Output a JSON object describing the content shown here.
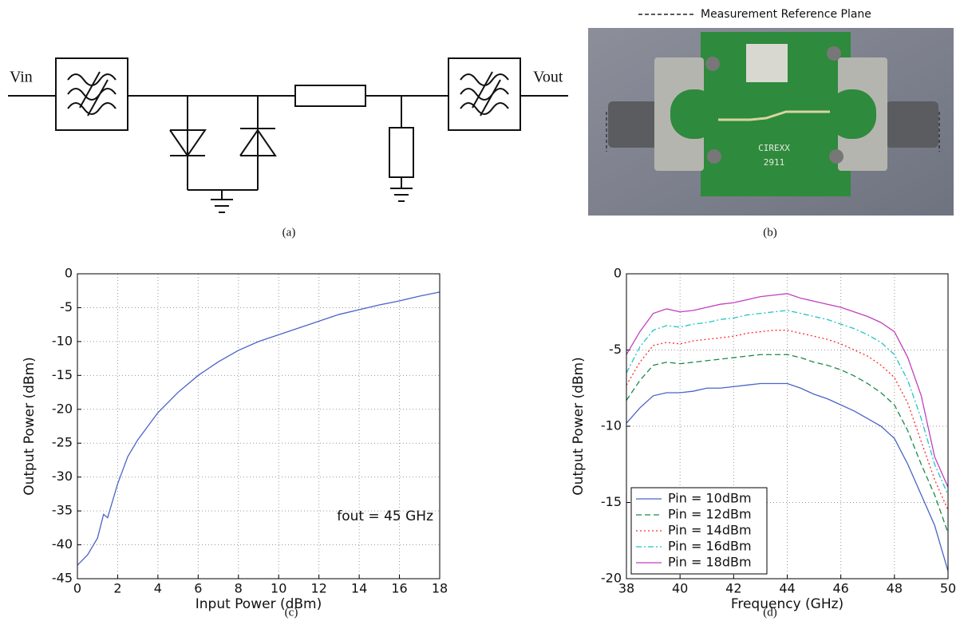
{
  "figure": {
    "schematic": {
      "input_label": "Vin",
      "output_label": "Vout",
      "caption": "(a)"
    },
    "photo": {
      "legend": "Measurement Reference Plane",
      "board_labels": [
        "CIREXX",
        "2911"
      ],
      "caption": "(b)"
    }
  },
  "chart_data": [
    {
      "type": "line",
      "caption": "(c)",
      "xlabel": "Input Power (dBm)",
      "ylabel": "Output Power (dBm)",
      "annotation": "fout = 45 GHz",
      "x": [
        0,
        0.5,
        1,
        1.3,
        1.5,
        2,
        2.5,
        3,
        4,
        5,
        6,
        7,
        8,
        9,
        10,
        11,
        12,
        13,
        14,
        15,
        16,
        17,
        18
      ],
      "values": [
        -43,
        -41.5,
        -39,
        -35.5,
        -36,
        -31,
        -27,
        -24.5,
        -20.5,
        -17.5,
        -15,
        -13,
        -11.3,
        -10,
        -9,
        -8,
        -7,
        -6,
        -5.3,
        -4.6,
        -4,
        -3.3,
        -2.7
      ],
      "color": "#4a64c8",
      "xlim": [
        0,
        18
      ],
      "ylim": [
        -45,
        0
      ],
      "xticks": [
        0,
        2,
        4,
        6,
        8,
        10,
        12,
        14,
        16,
        18
      ],
      "yticks": [
        -45,
        -40,
        -35,
        -30,
        -25,
        -20,
        -15,
        -10,
        -5,
        0
      ],
      "grid": true
    },
    {
      "type": "line",
      "caption": "(d)",
      "xlabel": "Frequency (GHz)",
      "ylabel": "Output Power (dBm)",
      "legend": "lower left",
      "x": [
        38,
        38.5,
        39,
        39.5,
        40,
        40.5,
        41,
        41.5,
        42,
        42.5,
        43,
        43.5,
        44,
        44.5,
        45,
        45.5,
        46,
        46.5,
        47,
        47.5,
        48,
        48.5,
        49,
        49.5,
        50
      ],
      "series": [
        {
          "name": "Pin = 10dBm",
          "color": "#4a64c8",
          "dash": "solid",
          "values": [
            -9.8,
            -8.8,
            -8,
            -7.8,
            -7.8,
            -7.7,
            -7.5,
            -7.5,
            -7.4,
            -7.3,
            -7.2,
            -7.2,
            -7.2,
            -7.5,
            -7.9,
            -8.2,
            -8.6,
            -9,
            -9.5,
            -10,
            -10.8,
            -12.5,
            -14.5,
            -16.5,
            -19.5
          ]
        },
        {
          "name": "Pin = 12dBm",
          "color": "#1a8a4a",
          "dash": "dashed",
          "values": [
            -8.3,
            -7,
            -6,
            -5.8,
            -5.9,
            -5.8,
            -5.7,
            -5.6,
            -5.5,
            -5.4,
            -5.3,
            -5.3,
            -5.3,
            -5.5,
            -5.8,
            -6,
            -6.3,
            -6.7,
            -7.2,
            -7.8,
            -8.6,
            -10.3,
            -12.5,
            -14.5,
            -17
          ]
        },
        {
          "name": "Pin = 14dBm",
          "color": "#ff2a2a",
          "dash": "dotted",
          "values": [
            -7.3,
            -5.8,
            -4.7,
            -4.5,
            -4.6,
            -4.4,
            -4.3,
            -4.2,
            -4.1,
            -3.9,
            -3.8,
            -3.7,
            -3.7,
            -3.9,
            -4.1,
            -4.3,
            -4.6,
            -5,
            -5.4,
            -6,
            -6.8,
            -8.5,
            -11,
            -13.5,
            -15.5
          ]
        },
        {
          "name": "Pin = 16dBm",
          "color": "#22c4c4",
          "dash": "dashdot",
          "values": [
            -6.5,
            -4.8,
            -3.7,
            -3.4,
            -3.5,
            -3.3,
            -3.2,
            -3,
            -2.9,
            -2.7,
            -2.6,
            -2.5,
            -2.4,
            -2.6,
            -2.8,
            -3,
            -3.3,
            -3.6,
            -4,
            -4.5,
            -5.3,
            -7,
            -9.5,
            -12.5,
            -14.5
          ]
        },
        {
          "name": "Pin = 18dBm",
          "color": "#c040c0",
          "dash": "solid",
          "values": [
            -5.3,
            -3.8,
            -2.6,
            -2.3,
            -2.5,
            -2.4,
            -2.2,
            -2,
            -1.9,
            -1.7,
            -1.5,
            -1.4,
            -1.3,
            -1.6,
            -1.8,
            -2,
            -2.2,
            -2.5,
            -2.8,
            -3.2,
            -3.8,
            -5.5,
            -8,
            -12,
            -14
          ]
        }
      ],
      "xlim": [
        38,
        50
      ],
      "ylim": [
        -20,
        0
      ],
      "xticks": [
        38,
        40,
        42,
        44,
        46,
        48,
        50
      ],
      "yticks": [
        -20,
        -15,
        -10,
        -5,
        0
      ],
      "grid": true
    }
  ]
}
